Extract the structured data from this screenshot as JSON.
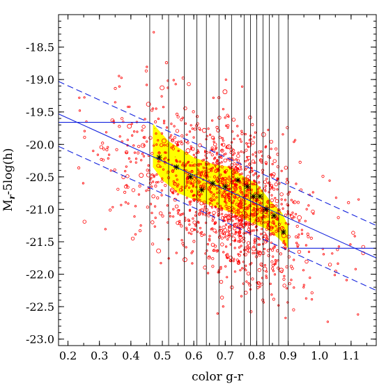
{
  "chart_data": {
    "type": "scatter",
    "title": "",
    "xlabel": "color g-r",
    "ylabel": "M",
    "ylabel_sub": "r",
    "ylabel_tail": "-5log(h)",
    "xlim": [
      0.17,
      1.18
    ],
    "ylim": [
      -23.1,
      -18.0
    ],
    "y_inverted": true,
    "x_ticks": [
      0.2,
      0.3,
      0.4,
      0.5,
      0.6,
      0.7,
      0.8,
      0.9,
      1.0,
      1.1
    ],
    "x_tick_labels": [
      "0.2",
      "0.3",
      "0.4",
      "0.5",
      "0.6",
      "0.7",
      "0.8",
      "0.9",
      "1.0",
      "1.1"
    ],
    "y_ticks": [
      -18.5,
      -19.0,
      -19.5,
      -20.0,
      -20.5,
      -21.0,
      -21.5,
      -22.0,
      -22.5,
      -23.0
    ],
    "y_tick_labels": [
      "-18.5",
      "-19.0",
      "-19.5",
      "-20.0",
      "-20.5",
      "-21.0",
      "-21.5",
      "-22.0",
      "-22.5",
      "-23.0"
    ],
    "bin_edges": [
      0.46,
      0.52,
      0.57,
      0.61,
      0.64,
      0.68,
      0.72,
      0.76,
      0.78,
      0.8,
      0.82,
      0.84,
      0.87,
      0.9
    ],
    "fit_line": {
      "x": [
        0.17,
        1.18
      ],
      "y": [
        -19.53,
        -21.75
      ]
    },
    "fit_bounds": [
      {
        "x": [
          0.17,
          1.18
        ],
        "y": [
          -19.03,
          -21.25
        ]
      },
      {
        "x": [
          0.17,
          1.18
        ],
        "y": [
          -20.03,
          -22.25
        ]
      }
    ],
    "flat_left": {
      "x": [
        0.17,
        0.46
      ],
      "y": -19.66
    },
    "flat_right": {
      "x": [
        0.9,
        1.18
      ],
      "y": -21.6
    },
    "yellow_band": {
      "upper": [
        [
          0.47,
          -19.68
        ],
        [
          0.52,
          -19.95
        ],
        [
          0.6,
          -20.2
        ],
        [
          0.66,
          -20.3
        ],
        [
          0.72,
          -20.35
        ],
        [
          0.76,
          -20.5
        ],
        [
          0.8,
          -20.6
        ],
        [
          0.84,
          -20.85
        ],
        [
          0.88,
          -21.05
        ],
        [
          0.9,
          -21.25
        ]
      ],
      "lower": [
        [
          0.9,
          -21.6
        ],
        [
          0.87,
          -21.45
        ],
        [
          0.83,
          -21.3
        ],
        [
          0.78,
          -21.2
        ],
        [
          0.72,
          -21.05
        ],
        [
          0.66,
          -20.95
        ],
        [
          0.6,
          -20.85
        ],
        [
          0.55,
          -20.75
        ],
        [
          0.5,
          -20.55
        ],
        [
          0.47,
          -20.35
        ]
      ]
    },
    "medians": {
      "x": [
        0.49,
        0.545,
        0.59,
        0.625,
        0.66,
        0.7,
        0.74,
        0.77,
        0.79,
        0.81,
        0.83,
        0.855,
        0.885
      ],
      "y": [
        -20.2,
        -20.35,
        -20.5,
        -20.7,
        -20.6,
        -20.65,
        -20.55,
        -20.65,
        -20.8,
        -20.8,
        -21.0,
        -21.1,
        -21.35
      ]
    },
    "scatter_seed": 12345,
    "scatter_count": 1400,
    "colors": {
      "points": "#ff0000",
      "band": "#ffff00",
      "band_speckle": "#e8c000",
      "fit": "#1020dd",
      "medians": "#000000",
      "bins": "#000000",
      "axes": "#000000"
    }
  }
}
